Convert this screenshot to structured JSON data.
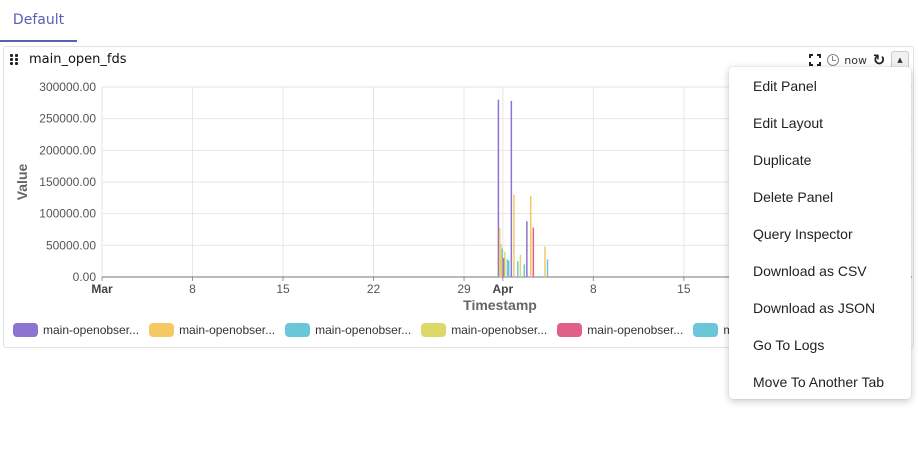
{
  "tabs": [
    {
      "label": "Default"
    }
  ],
  "panel": {
    "title": "main_open_fds",
    "time_label": "now",
    "icons": {
      "fullscreen": "fullscreen-icon",
      "time": "clock-icon",
      "refresh": "refresh-icon",
      "menu": "caret-up-icon"
    }
  },
  "chart_data": {
    "type": "bar",
    "xlabel": "Timestamp",
    "ylabel": "Value",
    "ylim": [
      0,
      300000
    ],
    "yticks": [
      "0.00",
      "50000.00",
      "100000.00",
      "150000.00",
      "200000.00",
      "250000.00",
      "300000.00"
    ],
    "xticks": [
      {
        "label": "Mar",
        "bold": true,
        "day": 0
      },
      {
        "label": "8",
        "bold": false,
        "day": 7
      },
      {
        "label": "15",
        "bold": false,
        "day": 14
      },
      {
        "label": "22",
        "bold": false,
        "day": 21
      },
      {
        "label": "29",
        "bold": false,
        "day": 28
      },
      {
        "label": "Apr",
        "bold": true,
        "day": 31
      },
      {
        "label": "8",
        "bold": false,
        "day": 38
      },
      {
        "label": "15",
        "bold": false,
        "day": 45
      }
    ],
    "x_visible_days": 52,
    "grid": true,
    "series": [
      {
        "name": "main-openobser...",
        "color": "#8c74d0",
        "bars": [
          {
            "day": 30.6,
            "value": 280000
          },
          {
            "day": 31.6,
            "value": 278000
          },
          {
            "day": 32.8,
            "value": 88000
          }
        ]
      },
      {
        "name": "main-openobser...",
        "color": "#f5c863",
        "bars": [
          {
            "day": 30.7,
            "value": 78000
          },
          {
            "day": 31.8,
            "value": 130000
          },
          {
            "day": 33.1,
            "value": 128000
          },
          {
            "day": 34.2,
            "value": 48000
          }
        ]
      },
      {
        "name": "main-openobser...",
        "color": "#6ac7d8",
        "bars": [
          {
            "day": 30.9,
            "value": 45000
          },
          {
            "day": 31.3,
            "value": 28000
          },
          {
            "day": 32.1,
            "value": 25000
          },
          {
            "day": 32.6,
            "value": 20000
          }
        ]
      },
      {
        "name": "main-openobser...",
        "color": "#dcd86a",
        "bars": [
          {
            "day": 30.8,
            "value": 52000
          },
          {
            "day": 31.1,
            "value": 40000
          },
          {
            "day": 32.3,
            "value": 35000
          }
        ]
      },
      {
        "name": "main-openobser...",
        "color": "#e0608a",
        "bars": [
          {
            "day": 31.0,
            "value": 30000
          },
          {
            "day": 33.3,
            "value": 78000
          }
        ]
      },
      {
        "name": "m",
        "color": "#6ac7d8",
        "bars": [
          {
            "day": 31.4,
            "value": 26000
          },
          {
            "day": 34.4,
            "value": 28000
          }
        ]
      }
    ]
  },
  "menu": {
    "items": [
      "Edit Panel",
      "Edit Layout",
      "Duplicate",
      "Delete Panel",
      "Query Inspector",
      "Download as CSV",
      "Download as JSON",
      "Go To Logs",
      "Move To Another Tab"
    ]
  }
}
